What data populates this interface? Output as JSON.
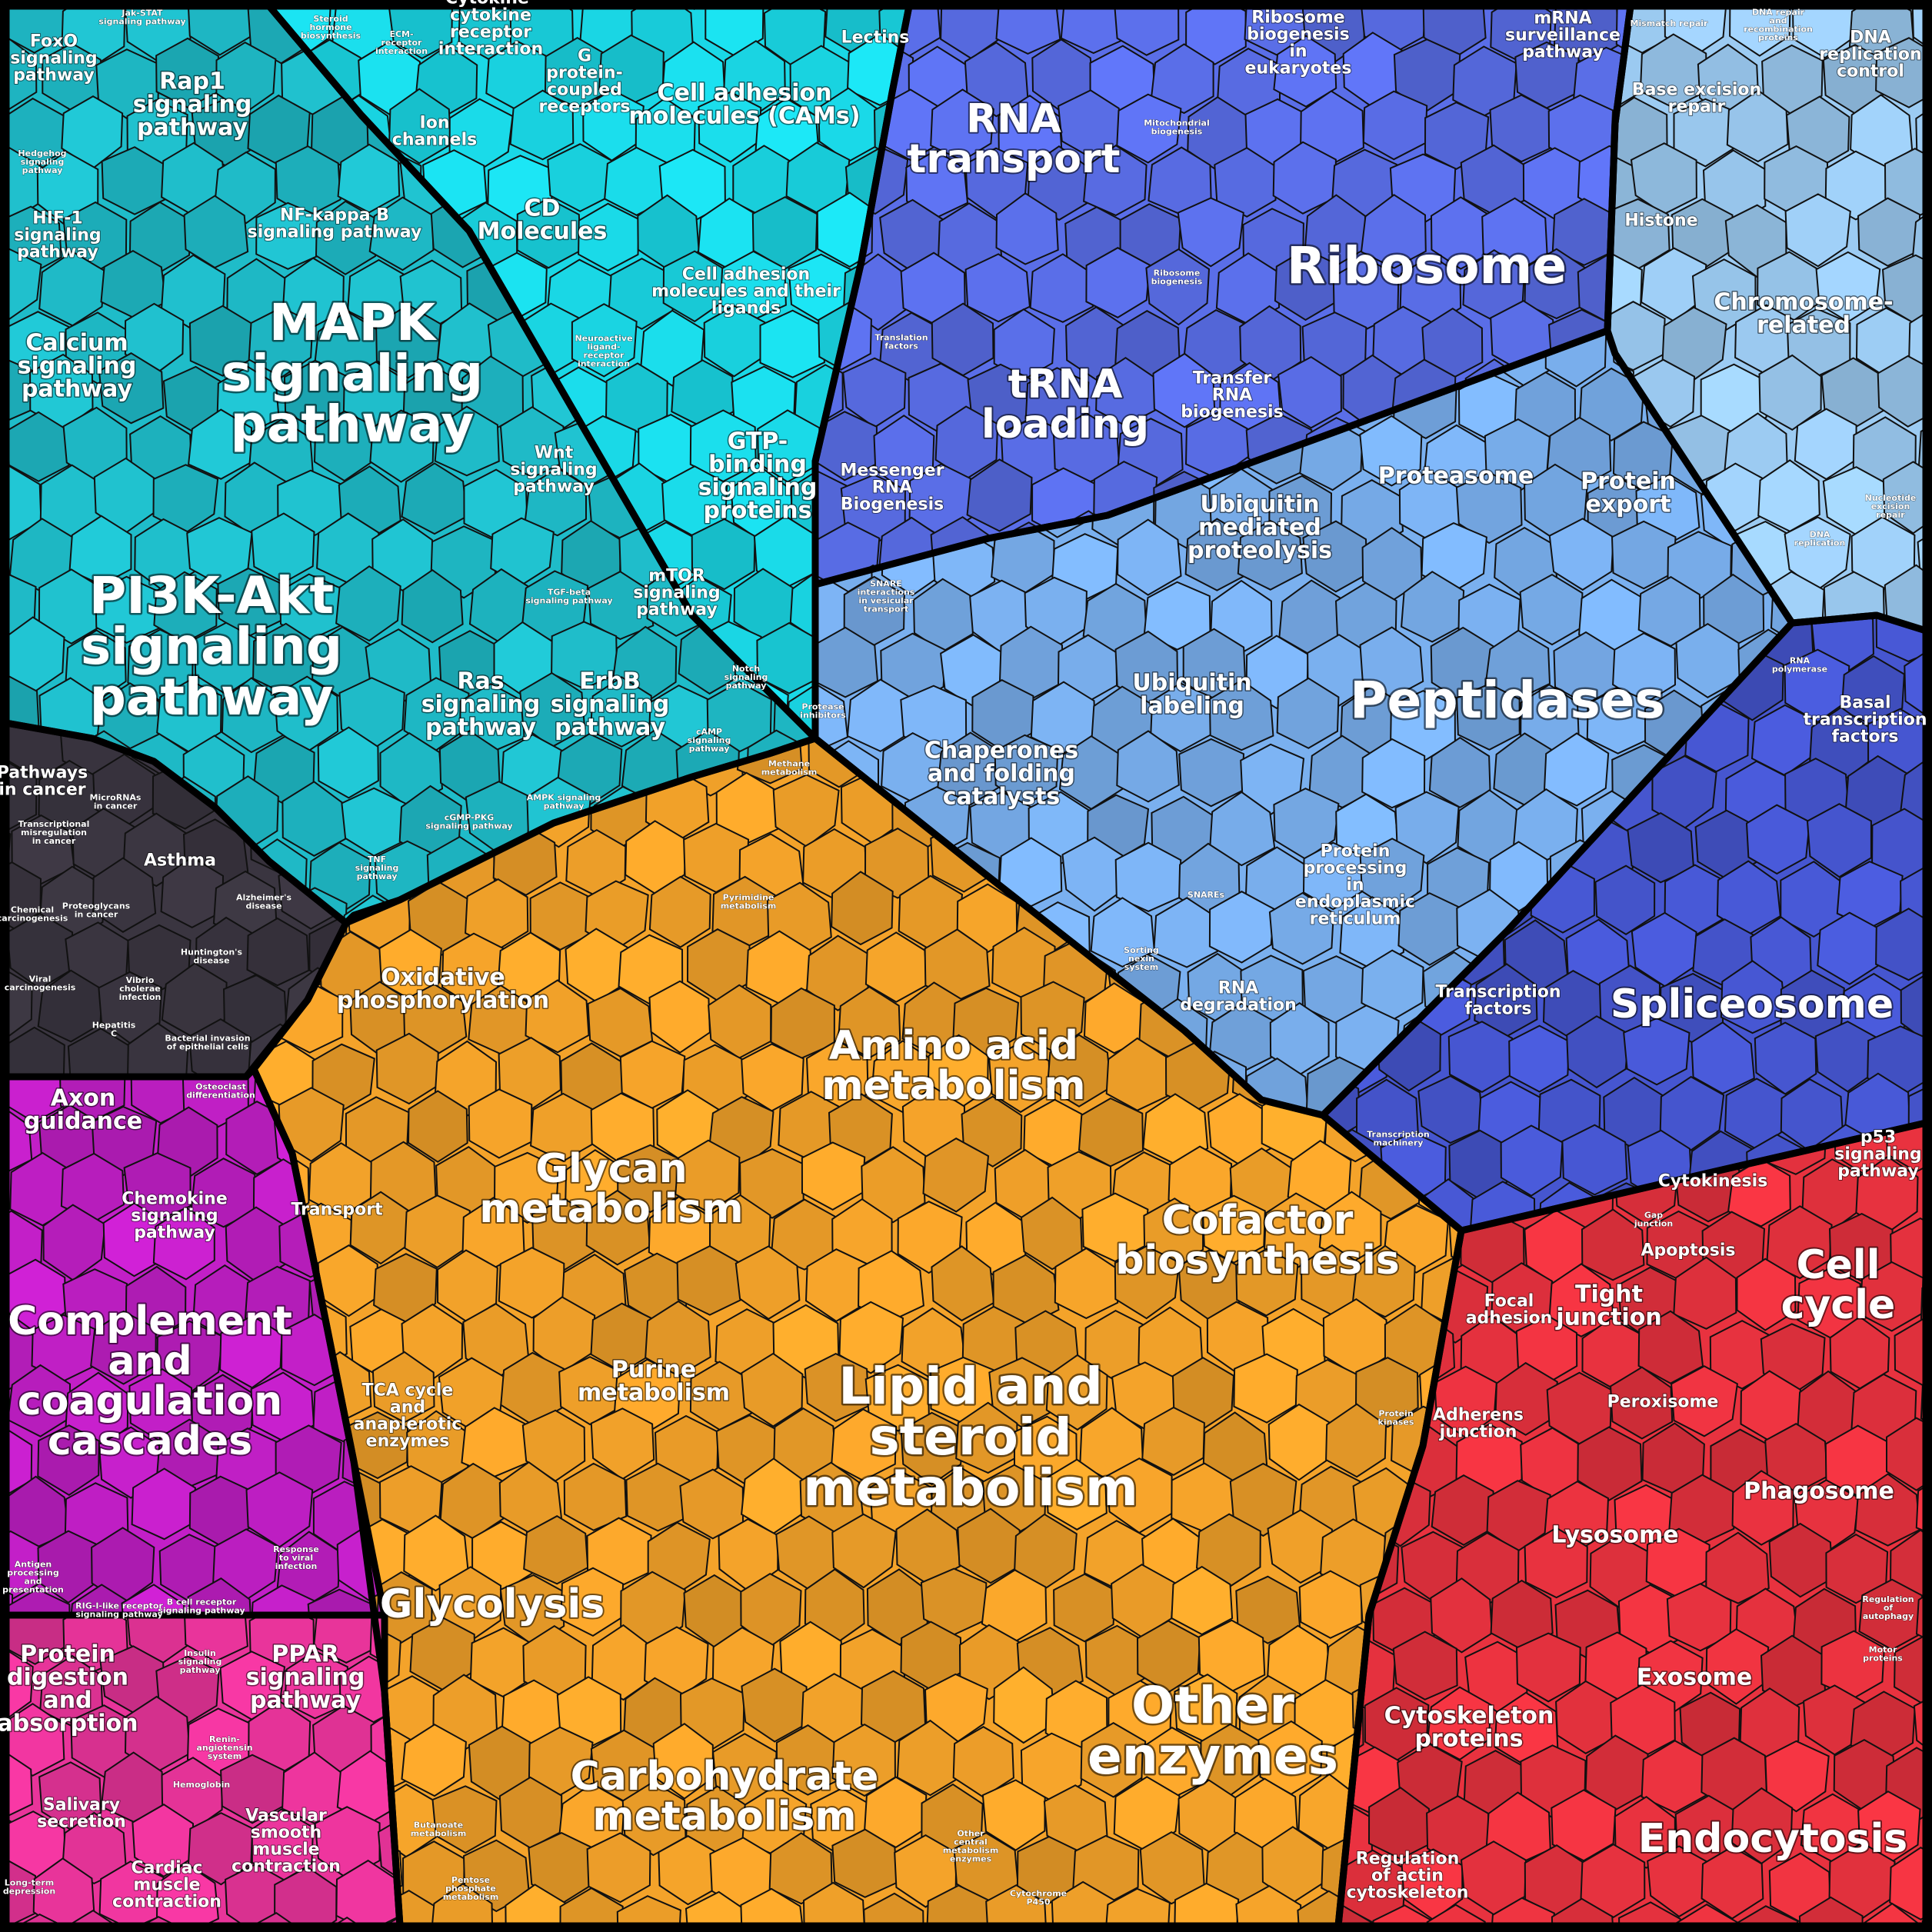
{
  "groups": [
    {
      "id": "signaling",
      "color": "#1fbcc9",
      "labels": [
        {
          "text": "FoxO\nsignaling\npathway",
          "size": "s"
        },
        {
          "text": "Jak-STAT\nsignaling pathway",
          "size": "xs"
        },
        {
          "text": "Rap1\nsignaling\npathway",
          "size": "m"
        },
        {
          "text": "Hedgehog\nsignaling\npathway",
          "size": "xs"
        },
        {
          "text": "HIF-1\nsignaling\npathway",
          "size": "s"
        },
        {
          "text": "NF-kappa B\nsignaling pathway",
          "size": "s"
        },
        {
          "text": "Calcium\nsignaling\npathway",
          "size": "m"
        },
        {
          "text": "MAPK\nsignaling\npathway",
          "size": "xl"
        },
        {
          "text": "Wnt\nsignaling\npathway",
          "size": "s"
        },
        {
          "text": "TGF-beta\nsignaling pathway",
          "size": "xs"
        },
        {
          "text": "mTOR\nsignaling\npathway",
          "size": "s"
        },
        {
          "text": "PI3K-Akt\nsignaling\npathway",
          "size": "xl"
        },
        {
          "text": "Ras\nsignaling\npathway",
          "size": "m"
        },
        {
          "text": "ErbB\nsignaling\npathway",
          "size": "m"
        },
        {
          "text": "Notch\nsignaling\npathway",
          "size": "xs"
        },
        {
          "text": "cAMP\nsignaling\npathway",
          "size": "xs"
        },
        {
          "text": "AMPK signaling\npathway",
          "size": "xs"
        },
        {
          "text": "cGMP-PKG\nsignaling pathway",
          "size": "xs"
        },
        {
          "text": "TNF\nsignaling\npathway",
          "size": "xs"
        }
      ]
    },
    {
      "id": "receptors",
      "color": "#1ad8e6",
      "labels": [
        {
          "text": "Steroid\nhormone\nbiosynthesis",
          "size": "xs"
        },
        {
          "text": "ECM-\nreceptor\ninteraction",
          "size": "xs"
        },
        {
          "text": "Cytokine-\ncytokine\nreceptor\ninteraction",
          "size": "s"
        },
        {
          "text": "Lectins",
          "size": "s"
        },
        {
          "text": "G\nprotein-\ncoupled\nreceptors",
          "size": "s"
        },
        {
          "text": "Cell adhesion\nmolecules (CAMs)",
          "size": "m"
        },
        {
          "text": "Ion\nchannels",
          "size": "s"
        },
        {
          "text": "CD\nMolecules",
          "size": "m"
        },
        {
          "text": "Cell adhesion\nmolecules and their\nligands",
          "size": "s"
        },
        {
          "text": "Neuroactive\nligand-\nreceptor\ninteraction",
          "size": "xs"
        },
        {
          "text": "GTP-\nbinding\nsignaling\nproteins",
          "size": "m"
        }
      ]
    },
    {
      "id": "disease",
      "color": "#3a3540",
      "labels": [
        {
          "text": "Pathways\nin cancer",
          "size": "s"
        },
        {
          "text": "MicroRNAs\nin cancer",
          "size": "xs"
        },
        {
          "text": "Transcriptional\nmisregulation\nin cancer",
          "size": "xs"
        },
        {
          "text": "Asthma",
          "size": "s"
        },
        {
          "text": "Chemical\ncarcinogenesis",
          "size": "xs"
        },
        {
          "text": "Proteoglycans\nin cancer",
          "size": "xs"
        },
        {
          "text": "Alzheimer's\ndisease",
          "size": "xs"
        },
        {
          "text": "Huntington's\ndisease",
          "size": "xs"
        },
        {
          "text": "Viral\ncarcinogenesis",
          "size": "xs"
        },
        {
          "text": "Vibrio\ncholerae\ninfection",
          "size": "xs"
        },
        {
          "text": "Hepatitis\nC",
          "size": "xs"
        },
        {
          "text": "Bacterial invasion\nof epithelial cells",
          "size": "xs"
        }
      ]
    },
    {
      "id": "transcription_translation",
      "color": "#5a6ee8",
      "labels": [
        {
          "text": "RNA\ntransport",
          "size": "l"
        },
        {
          "text": "Ribosome\nbiogenesis\nin\neukaryotes",
          "size": "s"
        },
        {
          "text": "mRNA\nsurveillance\npathway",
          "size": "s"
        },
        {
          "text": "Mitochondrial\nbiogenesis",
          "size": "xs"
        },
        {
          "text": "Ribosome",
          "size": "xl"
        },
        {
          "text": "Ribosome\nbiogenesis",
          "size": "xs"
        },
        {
          "text": "Translation\nfactors",
          "size": "xs"
        },
        {
          "text": "tRNA\nloading",
          "size": "l"
        },
        {
          "text": "Transfer\nRNA\nbiogenesis",
          "size": "s"
        },
        {
          "text": "Messenger\nRNA\nBiogenesis",
          "size": "s"
        }
      ]
    },
    {
      "id": "replication_repair",
      "color": "#9ccbf2",
      "labels": [
        {
          "text": "Mismatch repair",
          "size": "xs"
        },
        {
          "text": "DNA repair\nand\nrecombination\nproteins",
          "size": "xs"
        },
        {
          "text": "DNA\nreplication\ncontrol",
          "size": "s"
        },
        {
          "text": "Base excision\nrepair",
          "size": "s"
        },
        {
          "text": "Histone",
          "size": "s"
        },
        {
          "text": "Chromosome-\nrelated",
          "size": "m"
        },
        {
          "text": "Nucleotide\nexcision\nrepair",
          "size": "xs"
        },
        {
          "text": "DNA\nreplication",
          "size": "xs"
        }
      ]
    },
    {
      "id": "protein_processing",
      "color": "#7ab0ef",
      "labels": [
        {
          "text": "Proteasome",
          "size": "m"
        },
        {
          "text": "Protein\nexport",
          "size": "m"
        },
        {
          "text": "Ubiquitin\nmediated\nproteolysis",
          "size": "m"
        },
        {
          "text": "SNARE\ninteractions\nin vesicular\ntransport",
          "size": "xs"
        },
        {
          "text": "Ubiquitin\nlabeling",
          "size": "m"
        },
        {
          "text": "Peptidases",
          "size": "xl"
        },
        {
          "text": "Protease\ninhibitors",
          "size": "xs"
        },
        {
          "text": "Chaperones\nand folding\ncatalysts",
          "size": "m"
        },
        {
          "text": "SNAREs",
          "size": "xs"
        },
        {
          "text": "Protein\nprocessing\nin\nendoplasmic\nreticulum",
          "size": "s"
        },
        {
          "text": "Sorting\nnexin\nsystem",
          "size": "xs"
        },
        {
          "text": "RNA\ndegradation",
          "size": "s"
        }
      ]
    },
    {
      "id": "transcription",
      "color": "#4656d0",
      "labels": [
        {
          "text": "RNA\npolymerase",
          "size": "xs"
        },
        {
          "text": "Basal\ntranscription\nfactors",
          "size": "s"
        },
        {
          "text": "Spliceosome",
          "size": "l"
        },
        {
          "text": "Transcription\nfactors",
          "size": "s"
        },
        {
          "text": "Transcription\nmachinery",
          "size": "xs"
        }
      ]
    },
    {
      "id": "metabolism",
      "color": "#f4a32a",
      "labels": [
        {
          "text": "Methane\nmetabolism",
          "size": "xs"
        },
        {
          "text": "Pyrimidine\nmetabolism",
          "size": "xs"
        },
        {
          "text": "Oxidative\nphosphorylation",
          "size": "m"
        },
        {
          "text": "Amino acid\nmetabolism",
          "size": "l"
        },
        {
          "text": "Transport",
          "size": "s"
        },
        {
          "text": "Glycan\nmetabolism",
          "size": "l"
        },
        {
          "text": "Cofactor\nbiosynthesis",
          "size": "l"
        },
        {
          "text": "Purine\nmetabolism",
          "size": "m"
        },
        {
          "text": "TCA cycle\nand\nanaplerotic\nenzymes",
          "size": "s"
        },
        {
          "text": "Lipid and\nsteroid\nmetabolism",
          "size": "xl"
        },
        {
          "text": "Protein\nkinases",
          "size": "xs"
        },
        {
          "text": "Glycolysis",
          "size": "l"
        },
        {
          "text": "Other\nenzymes",
          "size": "xl"
        },
        {
          "text": "Carbohydrate\nmetabolism",
          "size": "l"
        },
        {
          "text": "Other\ncentral\nmetabolism\nenzymes",
          "size": "xs"
        },
        {
          "text": "Butanoate\nmetabolism",
          "size": "xs"
        },
        {
          "text": "Pentose\nphosphate\nmetabolism",
          "size": "xs"
        },
        {
          "text": "Cytochrome\nP450",
          "size": "xs"
        }
      ]
    },
    {
      "id": "immune",
      "color": "#c21fc7",
      "labels": [
        {
          "text": "Axon\nguidance",
          "size": "m"
        },
        {
          "text": "Osteoclast\ndifferentiation",
          "size": "xs"
        },
        {
          "text": "Chemokine\nsignaling\npathway",
          "size": "s"
        },
        {
          "text": "Complement\nand\ncoagulation\ncascades",
          "size": "l"
        },
        {
          "text": "Antigen\nprocessing\nand\npresentation",
          "size": "xs"
        },
        {
          "text": "RIG-I-like receptor\nsignaling pathway",
          "size": "xs"
        },
        {
          "text": "B cell receptor\nsignaling pathway",
          "size": "xs"
        },
        {
          "text": "Response\nto viral\ninfection",
          "size": "xs"
        }
      ]
    },
    {
      "id": "physiology",
      "color": "#e8349a",
      "labels": [
        {
          "text": "Protein\ndigestion\nand\nabsorption",
          "size": "m"
        },
        {
          "text": "Insulin\nsignaling\npathway",
          "size": "xs"
        },
        {
          "text": "PPAR\nsignaling\npathway",
          "size": "m"
        },
        {
          "text": "Renin-\nangiotensin\nsystem",
          "size": "xs"
        },
        {
          "text": "Salivary\nsecretion",
          "size": "s"
        },
        {
          "text": "Hemoglobin",
          "size": "xs"
        },
        {
          "text": "Vascular\nsmooth\nmuscle\ncontraction",
          "size": "s"
        },
        {
          "text": "Cardiac\nmuscle\ncontraction",
          "size": "s"
        },
        {
          "text": "Long-term\ndepression",
          "size": "xs"
        }
      ]
    },
    {
      "id": "cellular_processes",
      "color": "#e8323f",
      "labels": [
        {
          "text": "p53\nsignaling\npathway",
          "size": "s"
        },
        {
          "text": "Cytokinesis",
          "size": "s"
        },
        {
          "text": "Gap\njunction",
          "size": "xs"
        },
        {
          "text": "Apoptosis",
          "size": "s"
        },
        {
          "text": "Cell\ncycle",
          "size": "l"
        },
        {
          "text": "Focal\nadhesion",
          "size": "s"
        },
        {
          "text": "Tight\njunction",
          "size": "m"
        },
        {
          "text": "Peroxisome",
          "size": "s"
        },
        {
          "text": "Adherens\njunction",
          "size": "s"
        },
        {
          "text": "Phagosome",
          "size": "m"
        },
        {
          "text": "Lysosome",
          "size": "m"
        },
        {
          "text": "Regulation\nof\nautophagy",
          "size": "xs"
        },
        {
          "text": "Motor\nproteins",
          "size": "xs"
        },
        {
          "text": "Exosome",
          "size": "m"
        },
        {
          "text": "Cytoskeleton\nproteins",
          "size": "m"
        },
        {
          "text": "Endocytosis",
          "size": "l"
        },
        {
          "text": "Regulation\nof actin\ncytoskeleton",
          "size": "s"
        }
      ]
    }
  ]
}
